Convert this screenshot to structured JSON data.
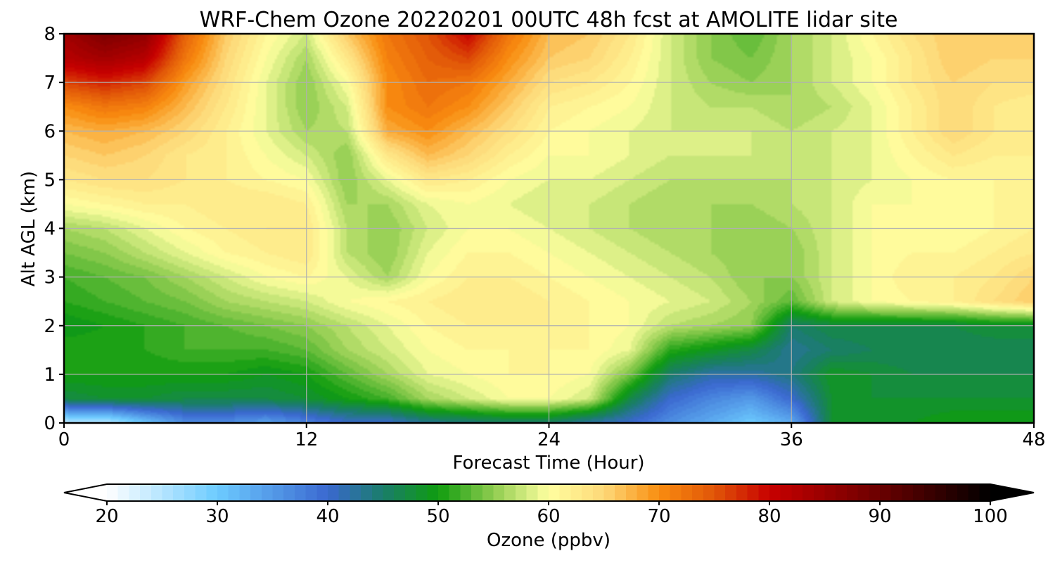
{
  "chart_data": {
    "type": "heatmap",
    "title": "WRF-Chem Ozone  20220201 00UTC 48h fcst at AMOLITE lidar site",
    "xlabel": "Forecast Time (Hour)",
    "ylabel": "Alt AGL (km)",
    "xlim": [
      0,
      48
    ],
    "ylim": [
      0,
      8
    ],
    "xticks": [
      0,
      12,
      24,
      36,
      48
    ],
    "yticks": [
      0,
      1,
      2,
      3,
      4,
      5,
      6,
      7,
      8
    ],
    "grid": true,
    "x": [
      0,
      2,
      4,
      6,
      8,
      10,
      12,
      14,
      16,
      18,
      20,
      22,
      24,
      26,
      28,
      30,
      32,
      34,
      36,
      38,
      40,
      42,
      44,
      46,
      48
    ],
    "y": [
      0,
      0.5,
      1,
      1.5,
      2,
      2.5,
      3,
      3.5,
      4,
      4.5,
      5,
      5.5,
      6,
      6.5,
      7,
      7.5,
      8
    ],
    "z": [
      [
        24,
        24,
        30,
        36,
        36,
        34,
        37,
        40,
        40,
        43,
        44,
        45,
        45,
        42,
        40,
        36,
        33,
        30,
        33,
        48,
        49,
        49,
        50,
        50,
        50
      ],
      [
        47,
        48,
        48,
        47,
        47,
        47,
        48,
        50,
        52,
        56,
        58,
        60,
        60,
        58,
        47,
        40,
        37,
        35,
        40,
        48,
        48,
        48,
        48,
        48,
        48
      ],
      [
        50,
        50,
        50,
        50,
        50,
        49,
        50,
        53,
        56,
        59,
        60,
        61,
        61,
        60,
        54,
        45,
        42,
        42,
        44,
        49,
        48,
        47,
        47,
        47,
        47
      ],
      [
        51,
        51,
        51,
        52,
        52,
        52,
        53,
        56,
        58,
        60,
        61,
        61,
        61,
        61,
        59,
        51,
        49,
        47,
        43,
        45,
        46,
        46,
        46,
        46,
        46
      ],
      [
        49,
        50,
        51,
        52,
        53,
        54,
        55,
        57,
        59,
        61,
        62,
        62,
        62,
        61,
        60,
        57,
        56,
        55,
        45,
        47,
        47,
        47,
        47,
        48,
        48
      ],
      [
        51,
        52,
        53,
        54,
        56,
        57,
        58,
        60,
        61,
        62,
        63,
        63,
        62,
        61,
        60,
        59,
        58,
        56,
        53,
        58,
        60,
        61,
        62,
        64,
        66
      ],
      [
        52,
        53,
        54,
        56,
        58,
        60,
        61,
        59,
        56,
        60,
        62,
        62,
        61,
        60,
        59,
        58,
        57,
        55,
        55,
        58,
        60,
        62,
        62,
        63,
        65
      ],
      [
        54,
        55,
        57,
        59,
        61,
        62,
        63,
        57,
        55,
        59,
        61,
        61,
        60,
        59,
        58,
        57,
        56,
        55,
        55,
        58,
        60,
        61,
        61,
        62,
        63
      ],
      [
        56,
        57,
        59,
        61,
        62,
        63,
        63,
        57,
        55,
        58,
        60,
        60,
        59,
        58,
        57,
        56,
        56,
        55,
        56,
        58,
        60,
        60,
        60,
        61,
        62
      ],
      [
        60,
        61,
        62,
        62,
        63,
        63,
        62,
        56,
        56,
        59,
        60,
        59,
        58,
        58,
        57,
        56,
        56,
        56,
        57,
        58,
        60,
        60,
        60,
        61,
        61
      ],
      [
        63,
        64,
        64,
        63,
        62,
        61,
        60,
        55,
        59,
        63,
        62,
        60,
        59,
        59,
        58,
        57,
        57,
        57,
        57,
        58,
        59,
        60,
        61,
        61,
        61
      ],
      [
        65,
        66,
        65,
        63,
        62,
        60,
        58,
        55,
        63,
        67,
        65,
        62,
        60,
        60,
        59,
        58,
        58,
        58,
        57,
        58,
        59,
        61,
        63,
        62,
        62
      ],
      [
        67,
        68,
        67,
        65,
        62,
        59,
        56,
        57,
        68,
        70,
        67,
        64,
        61,
        60,
        59,
        58,
        58,
        58,
        57,
        58,
        59,
        62,
        65,
        63,
        62
      ],
      [
        70,
        72,
        71,
        67,
        63,
        59,
        55,
        58,
        70,
        72,
        70,
        66,
        62,
        61,
        60,
        58,
        57,
        57,
        56,
        57,
        59,
        62,
        65,
        63,
        62
      ],
      [
        76,
        78,
        76,
        69,
        64,
        59,
        55,
        60,
        70,
        73,
        72,
        68,
        64,
        63,
        61,
        58,
        56,
        55,
        56,
        58,
        60,
        63,
        65,
        64,
        64
      ],
      [
        82,
        84,
        82,
        72,
        65,
        60,
        56,
        63,
        71,
        74,
        76,
        70,
        66,
        65,
        62,
        58,
        55,
        54,
        56,
        58,
        60,
        63,
        66,
        65,
        65
      ],
      [
        84,
        88,
        86,
        74,
        66,
        61,
        58,
        66,
        72,
        75,
        80,
        72,
        67,
        66,
        63,
        58,
        55,
        53,
        56,
        58,
        61,
        64,
        66,
        66,
        66
      ]
    ],
    "colorbar": {
      "label": "Ozone  (ppbv)",
      "range": [
        20,
        100
      ],
      "ticks": [
        "20",
        "30",
        "40",
        "50",
        "60",
        "70",
        "80",
        "90",
        "100"
      ],
      "extend": "both",
      "colors": [
        {
          "value": 20,
          "color": "#ffffff"
        },
        {
          "value": 30,
          "color": "#6ccbff"
        },
        {
          "value": 40,
          "color": "#3a68d0"
        },
        {
          "value": 45,
          "color": "#1a7d6a"
        },
        {
          "value": 50,
          "color": "#0f9c0f"
        },
        {
          "value": 55,
          "color": "#8fcc4f"
        },
        {
          "value": 60,
          "color": "#ffffa0"
        },
        {
          "value": 65,
          "color": "#fdd878"
        },
        {
          "value": 70,
          "color": "#f98d10"
        },
        {
          "value": 75,
          "color": "#e05508"
        },
        {
          "value": 80,
          "color": "#c80000"
        },
        {
          "value": 90,
          "color": "#6a0000"
        },
        {
          "value": 100,
          "color": "#000000"
        }
      ]
    }
  }
}
